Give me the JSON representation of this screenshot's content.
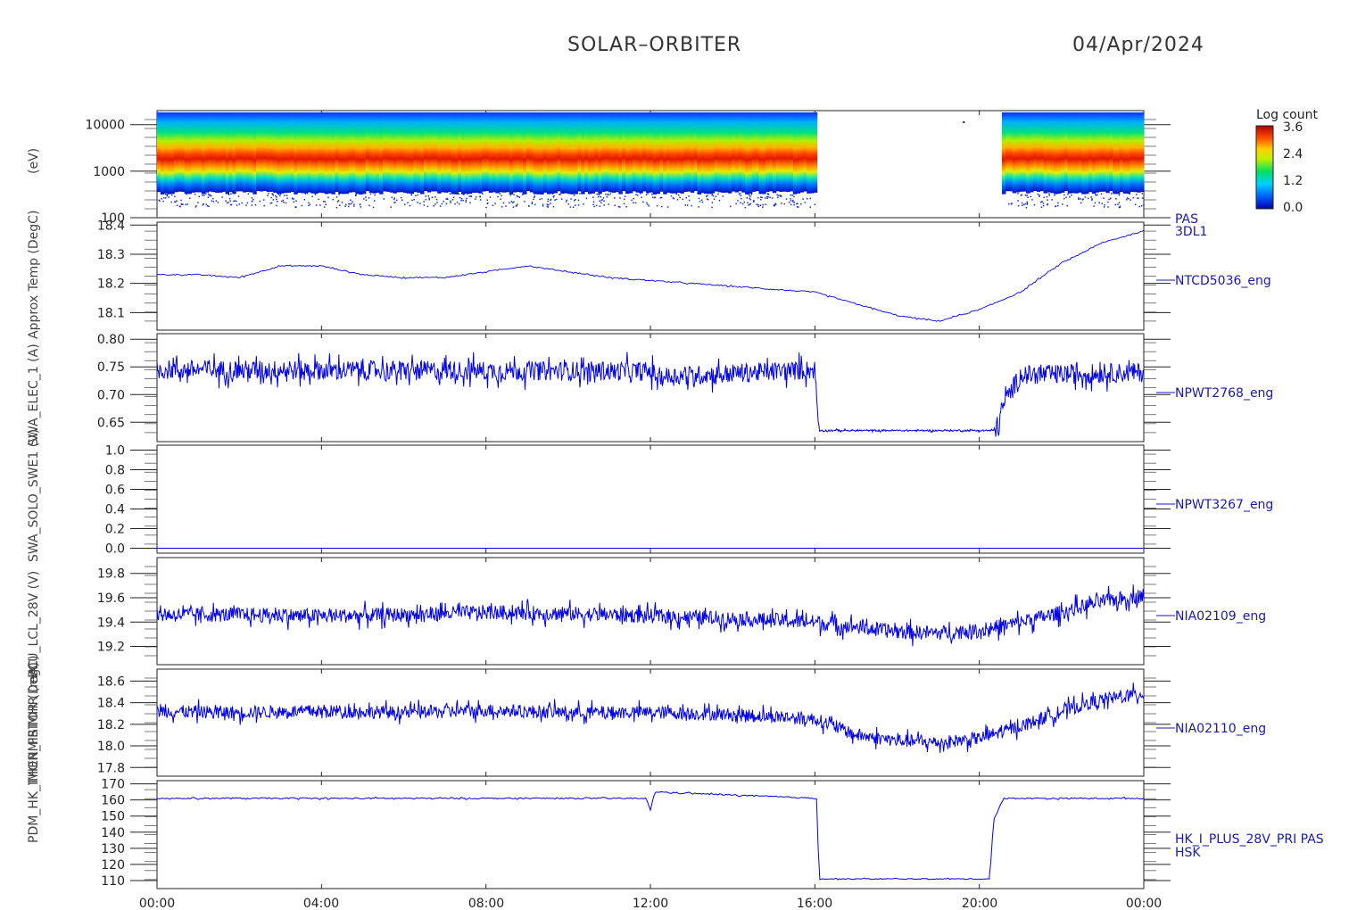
{
  "header": {
    "title": "SOLAR–ORBITER",
    "date": "04/Apr/2024"
  },
  "colors": {
    "trace": "#0000ee",
    "label": "#1a1aaa",
    "axis": "#222222"
  },
  "colorbar": {
    "title": "Log count",
    "ticks": [
      "3.6",
      "2.4",
      "1.2",
      "0.0"
    ],
    "range": [
      0.0,
      3.6
    ]
  },
  "x_axis": {
    "ticks": [
      "00:00",
      "04:00",
      "08:00",
      "12:00",
      "16:00",
      "20:00",
      "00:00"
    ],
    "range_hours": [
      0,
      24
    ]
  },
  "y_labels": [
    "(eV)",
    "Approx Temp (DegC)",
    "SWA_ELEC_1 (A)",
    "SWA_SOLO_SWE1 (V)",
    "PCU_LCL_28V (V)",
    "THERMISTOR (DegC)",
    "PDM_HK_IMON_PRIMHR (mA)"
  ],
  "chart_data": [
    {
      "type": "heatmap",
      "name": "PAS 3DL1",
      "label_lines": [
        "PAS",
        "3DL1"
      ],
      "ylabel": "(eV)",
      "yscale": "log",
      "ylim": [
        100,
        20000
      ],
      "yticks": [
        "10000",
        "1000",
        "100"
      ],
      "colorscale": "rainbow",
      "peak_energy_ev": [
        [
          0,
          2000
        ],
        [
          12,
          2000
        ],
        [
          12.2,
          2000
        ],
        [
          16,
          1800
        ],
        [
          20.6,
          2100
        ],
        [
          24,
          2100
        ]
      ],
      "data_gaps_hours": [
        [
          16.05,
          20.55
        ]
      ]
    },
    {
      "type": "line",
      "name": "NTCD5036_eng",
      "ylabel": "Approx Temp (DegC)",
      "ylim": [
        18.04,
        18.41
      ],
      "yticks": [
        "18.4",
        "18.3",
        "18.2",
        "18.1"
      ],
      "x": [
        0,
        1,
        2,
        3,
        4,
        5,
        6,
        7,
        8,
        9,
        10,
        11,
        12,
        13,
        14,
        15,
        16,
        17,
        18,
        19,
        20,
        21,
        22,
        23,
        24
      ],
      "values": [
        18.23,
        18.23,
        18.22,
        18.26,
        18.26,
        18.23,
        18.22,
        18.22,
        18.24,
        18.26,
        18.24,
        18.22,
        18.21,
        18.2,
        18.19,
        18.18,
        18.17,
        18.13,
        18.09,
        18.07,
        18.11,
        18.17,
        18.27,
        18.34,
        18.38
      ]
    },
    {
      "type": "line",
      "name": "NPWT2768_eng",
      "ylabel": "SWA_ELEC_1 (A)",
      "ylim": [
        0.615,
        0.81
      ],
      "yticks": [
        "0.80",
        "0.75",
        "0.70",
        "0.65"
      ],
      "x": [
        0,
        12,
        12.2,
        16,
        16.1,
        19.3,
        20.4,
        20.6,
        21,
        24
      ],
      "values": [
        0.745,
        0.742,
        0.732,
        0.745,
        0.635,
        0.635,
        0.635,
        0.685,
        0.735,
        0.74
      ]
    },
    {
      "type": "line",
      "name": "NPWT3267_eng",
      "ylabel": "SWA_SOLO_SWE1 (V)",
      "ylim": [
        -0.05,
        1.05
      ],
      "yticks": [
        "1.0",
        "0.8",
        "0.6",
        "0.4",
        "0.2",
        "0.0"
      ],
      "x": [
        0,
        24
      ],
      "values": [
        0.0,
        0.0
      ]
    },
    {
      "type": "line",
      "name": "NIA02109_eng",
      "ylabel": "PCU_LCL_28V (V)",
      "ylim": [
        19.05,
        19.93
      ],
      "yticks": [
        "19.8",
        "19.6",
        "19.4",
        "19.2"
      ],
      "x": [
        0,
        2,
        4,
        6,
        8,
        10,
        12,
        14,
        16,
        17,
        18,
        19,
        20,
        21,
        22,
        23,
        24
      ],
      "values": [
        19.46,
        19.46,
        19.45,
        19.46,
        19.48,
        19.47,
        19.45,
        19.43,
        19.4,
        19.36,
        19.32,
        19.31,
        19.33,
        19.4,
        19.48,
        19.57,
        19.62
      ]
    },
    {
      "type": "line",
      "name": "NIA02110_eng",
      "ylabel": "THERMISTOR (DegC)",
      "ylim": [
        17.72,
        18.71
      ],
      "yticks": [
        "18.6",
        "18.4",
        "18.2",
        "18.0",
        "17.8"
      ],
      "x": [
        0,
        2,
        4,
        6,
        8,
        10,
        12,
        14,
        16,
        17,
        18,
        19,
        20,
        21,
        22,
        23,
        24
      ],
      "values": [
        18.32,
        18.31,
        18.32,
        18.31,
        18.33,
        18.31,
        18.31,
        18.29,
        18.25,
        18.1,
        18.05,
        18.03,
        18.07,
        18.18,
        18.32,
        18.43,
        18.48
      ]
    },
    {
      "type": "line",
      "name": "HK_I_PLUS_28V_PRI PAS HSK",
      "label_lines": [
        "HK_I_PLUS_28V_PRI PAS",
        "HSK"
      ],
      "ylabel": "PDM_HK_IMON_PRIMHR (mA)",
      "ylim": [
        105,
        172
      ],
      "yticks": [
        "170",
        "160",
        "150",
        "140",
        "130",
        "120",
        "110"
      ],
      "x": [
        0,
        11.9,
        12.0,
        12.1,
        16.05,
        16.1,
        20.25,
        20.35,
        20.6,
        24
      ],
      "values": [
        161,
        161,
        153,
        165,
        161,
        111,
        111,
        148,
        161,
        161
      ]
    }
  ]
}
